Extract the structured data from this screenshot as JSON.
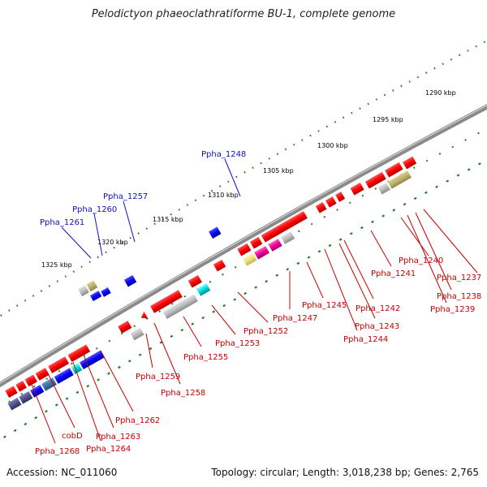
{
  "title": "Pelodictyon phaeoclathratiforme BU-1, complete genome",
  "footer": {
    "accession": "Accession: NC_011060",
    "topology": "Topology: circular; Length: 3,018,238 bp; Genes: 2,765"
  },
  "ticks": [
    "1290 kbp",
    "1295 kbp",
    "1300 kbp",
    "1305 kbp",
    "1310 kbp",
    "1315 kbp",
    "1320 kbp",
    "1325 kbp"
  ],
  "genes_top": [
    "Ppha_1248",
    "Ppha_1257",
    "Ppha_1260",
    "Ppha_1261"
  ],
  "genes_bottom": [
    "Ppha_1237",
    "Ppha_1238",
    "Ppha_1239",
    "Ppha_1240",
    "Ppha_1241",
    "Ppha_1242",
    "Ppha_1243",
    "Ppha_1244",
    "Ppha_1245",
    "Ppha_1247",
    "Ppha_1252",
    "Ppha_1253",
    "Ppha_1255",
    "Ppha_1258",
    "Ppha_1259",
    "Ppha_1262",
    "Ppha_1263",
    "Ppha_1264",
    "cobD",
    "Ppha_1268"
  ],
  "colors": {
    "forward": "#ff0000",
    "reverse": "#0000ff",
    "backbone": "#808080",
    "tick_dots": "#2a7a2a",
    "label_top": "#1010c8",
    "label_bottom": "#c80000"
  }
}
